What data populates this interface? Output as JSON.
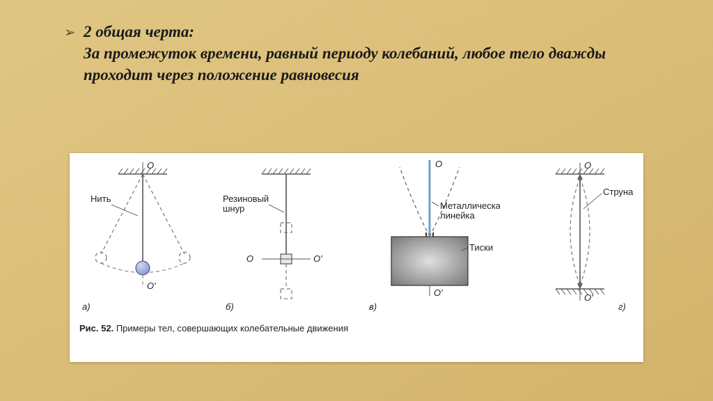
{
  "background": {
    "base_color": "#d9b96a",
    "texture_color1": "#e6cf92",
    "texture_color2": "#c7a257"
  },
  "bullet": {
    "marker": "➢",
    "text": "2 общая черта:\nЗа промежуток времени, равный периоду колебаний, любое тело дважды проходит через положение равновесия"
  },
  "figure": {
    "caption_prefix": "Рис. 52.",
    "caption_text": " Примеры тел, совершающих колебательные движения",
    "sublabels": [
      "а)",
      "б)",
      "в)",
      "г)"
    ],
    "labels": {
      "O": "O",
      "Oprime": "O'",
      "thread": "Нить",
      "rubber_cord": "Резиновый\nшнур",
      "ruler": "Металлическая\nлинейка",
      "vise": "Тиски",
      "string": "Струна"
    },
    "colors": {
      "line": "#555555",
      "dash": "#777777",
      "accent_blue": "#4a6fa5",
      "hatch": "#555555",
      "label_line": "#444444",
      "text": "#222222",
      "ball_fill": "#8a9bd1",
      "ball_stroke": "#3a4a7a",
      "vise_fill1": "#777777",
      "vise_fill2": "#e0e0e0",
      "ruler_fill": "#6fa0c8"
    },
    "geom": {
      "line_width": 1.6,
      "dash_pattern": "5,4"
    },
    "label_font": {
      "family": "Arial, sans-serif",
      "size": 13,
      "weight": "normal"
    }
  }
}
